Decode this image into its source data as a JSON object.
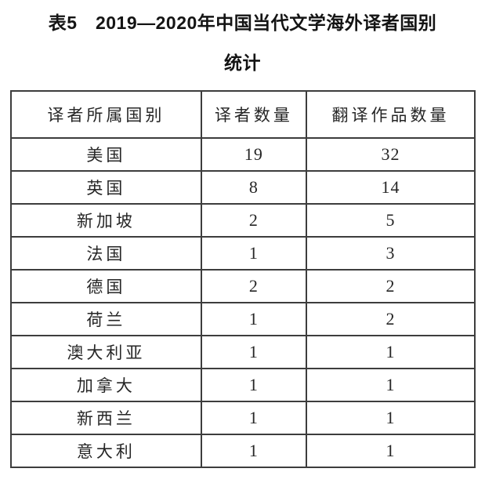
{
  "title": {
    "line1": "表5　2019—2020年中国当代文学海外译者国别",
    "line2": "统计"
  },
  "chart_data": {
    "type": "table",
    "title": "表5 2019—2020年中国当代文学海外译者国别统计",
    "columns": [
      "译者所属国别",
      "译者数量",
      "翻译作品数量"
    ],
    "rows": [
      [
        "美国",
        19,
        32
      ],
      [
        "英国",
        8,
        14
      ],
      [
        "新加坡",
        2,
        5
      ],
      [
        "法国",
        1,
        3
      ],
      [
        "德国",
        2,
        2
      ],
      [
        "荷兰",
        1,
        2
      ],
      [
        "澳大利亚",
        1,
        1
      ],
      [
        "加拿大",
        1,
        1
      ],
      [
        "新西兰",
        1,
        1
      ],
      [
        "意大利",
        1,
        1
      ]
    ]
  },
  "colors": {
    "border": "#3d3d3d",
    "text": "#262626",
    "background": "#ffffff"
  }
}
